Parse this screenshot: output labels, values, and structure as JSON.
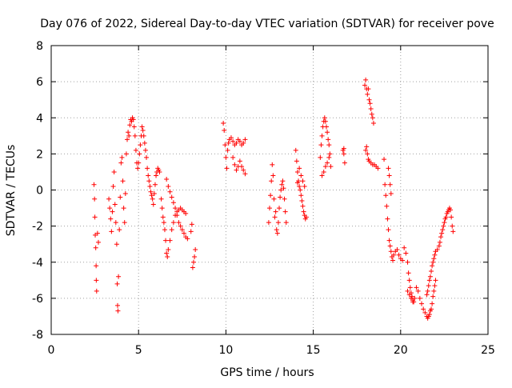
{
  "chart_data": {
    "type": "scatter",
    "title": "Day 076 of 2022, Sidereal Day-to-day VTEC variation (SDTVAR) for receiver pove",
    "xlabel": "GPS time / hours",
    "ylabel": "SDTVAR / TECUs",
    "xlim": [
      0,
      25
    ],
    "ylim": [
      -8,
      8
    ],
    "xticks": [
      0,
      5,
      10,
      15,
      20,
      25
    ],
    "yticks": [
      -8,
      -6,
      -4,
      -2,
      0,
      2,
      4,
      6,
      8
    ],
    "xtick_labels": [
      "0",
      "5",
      "10",
      "15",
      "20",
      "25"
    ],
    "ytick_labels": [
      "-8",
      "-6",
      "-4",
      "-2",
      "0",
      "2",
      "4",
      "6",
      "8"
    ],
    "grid": true,
    "marker": "+",
    "color": "#ff0000",
    "series": [
      {
        "name": "SDTVAR",
        "points": [
          [
            2.45,
            0.3
          ],
          [
            2.48,
            -0.5
          ],
          [
            2.5,
            -1.5
          ],
          [
            2.52,
            -2.5
          ],
          [
            2.55,
            -3.2
          ],
          [
            2.57,
            -4.2
          ],
          [
            2.58,
            -5.0
          ],
          [
            2.6,
            -5.6
          ],
          [
            2.65,
            -2.4
          ],
          [
            2.7,
            -2.9
          ],
          [
            3.3,
            -0.5
          ],
          [
            3.35,
            -1.0
          ],
          [
            3.4,
            -1.6
          ],
          [
            3.45,
            -2.3
          ],
          [
            3.5,
            -1.2
          ],
          [
            3.55,
            0.2
          ],
          [
            3.6,
            1.0
          ],
          [
            3.65,
            -0.8
          ],
          [
            3.7,
            -1.8
          ],
          [
            3.75,
            -3.0
          ],
          [
            3.78,
            -5.2
          ],
          [
            3.8,
            -6.4
          ],
          [
            3.82,
            -6.7
          ],
          [
            3.85,
            -4.8
          ],
          [
            3.9,
            -2.2
          ],
          [
            3.95,
            -0.4
          ],
          [
            4.0,
            1.5
          ],
          [
            4.05,
            1.8
          ],
          [
            4.1,
            0.5
          ],
          [
            4.15,
            -1.0
          ],
          [
            4.2,
            -1.8
          ],
          [
            4.25,
            -0.2
          ],
          [
            4.3,
            2.0
          ],
          [
            4.35,
            2.8
          ],
          [
            4.4,
            3.2
          ],
          [
            4.45,
            3.0
          ],
          [
            4.5,
            3.6
          ],
          [
            4.55,
            3.9
          ],
          [
            4.6,
            3.8
          ],
          [
            4.65,
            4.0
          ],
          [
            4.7,
            3.9
          ],
          [
            4.75,
            3.5
          ],
          [
            4.8,
            3.0
          ],
          [
            4.85,
            2.2
          ],
          [
            4.9,
            1.5
          ],
          [
            4.95,
            1.2
          ],
          [
            5.0,
            1.5
          ],
          [
            5.05,
            2.0
          ],
          [
            5.1,
            2.5
          ],
          [
            5.15,
            3.0
          ],
          [
            5.2,
            3.5
          ],
          [
            5.25,
            3.3
          ],
          [
            5.3,
            3.0
          ],
          [
            5.35,
            2.6
          ],
          [
            5.4,
            2.2
          ],
          [
            5.45,
            1.8
          ],
          [
            5.5,
            1.2
          ],
          [
            5.55,
            0.8
          ],
          [
            5.6,
            0.5
          ],
          [
            5.65,
            0.2
          ],
          [
            5.7,
            -0.1
          ],
          [
            5.75,
            -0.3
          ],
          [
            5.8,
            -0.5
          ],
          [
            5.85,
            -0.8
          ],
          [
            5.9,
            -0.2
          ],
          [
            5.95,
            0.3
          ],
          [
            6.0,
            0.8
          ],
          [
            6.05,
            1.0
          ],
          [
            6.1,
            1.2
          ],
          [
            6.15,
            1.1
          ],
          [
            6.2,
            1.0
          ],
          [
            6.3,
            -0.5
          ],
          [
            6.35,
            -1.0
          ],
          [
            6.4,
            -1.5
          ],
          [
            6.45,
            -1.8
          ],
          [
            6.5,
            -2.2
          ],
          [
            6.55,
            -2.8
          ],
          [
            6.6,
            -3.5
          ],
          [
            6.65,
            -3.7
          ],
          [
            6.7,
            -3.3
          ],
          [
            6.8,
            -2.8
          ],
          [
            6.9,
            -2.2
          ],
          [
            7.0,
            -1.8
          ],
          [
            7.1,
            -1.4
          ],
          [
            7.2,
            -1.2
          ],
          [
            7.3,
            -1.1
          ],
          [
            7.4,
            -1.0
          ],
          [
            7.5,
            -1.1
          ],
          [
            7.6,
            -1.2
          ],
          [
            7.7,
            -1.3
          ],
          [
            6.6,
            0.6
          ],
          [
            6.7,
            0.2
          ],
          [
            6.8,
            -0.1
          ],
          [
            6.9,
            -0.4
          ],
          [
            7.0,
            -0.7
          ],
          [
            7.1,
            -1.0
          ],
          [
            7.2,
            -1.4
          ],
          [
            7.3,
            -1.8
          ],
          [
            7.4,
            -2.0
          ],
          [
            7.5,
            -2.2
          ],
          [
            7.6,
            -2.4
          ],
          [
            7.7,
            -2.6
          ],
          [
            7.8,
            -2.7
          ],
          [
            8.0,
            -2.3
          ],
          [
            8.05,
            -1.9
          ],
          [
            8.1,
            -4.3
          ],
          [
            8.15,
            -4.0
          ],
          [
            8.2,
            -3.7
          ],
          [
            8.25,
            -3.3
          ],
          [
            9.85,
            3.7
          ],
          [
            9.9,
            3.3
          ],
          [
            9.95,
            2.5
          ],
          [
            10.0,
            1.8
          ],
          [
            10.05,
            1.2
          ],
          [
            10.1,
            2.2
          ],
          [
            10.15,
            2.6
          ],
          [
            10.2,
            2.8
          ],
          [
            10.3,
            2.9
          ],
          [
            10.4,
            2.7
          ],
          [
            10.5,
            2.5
          ],
          [
            10.6,
            2.6
          ],
          [
            10.7,
            2.8
          ],
          [
            10.8,
            2.7
          ],
          [
            10.9,
            2.5
          ],
          [
            11.0,
            2.6
          ],
          [
            11.1,
            2.8
          ],
          [
            10.4,
            1.8
          ],
          [
            10.5,
            1.4
          ],
          [
            10.6,
            1.1
          ],
          [
            10.7,
            1.3
          ],
          [
            10.8,
            1.6
          ],
          [
            10.9,
            1.3
          ],
          [
            11.0,
            1.1
          ],
          [
            11.1,
            0.9
          ],
          [
            12.45,
            -1.8
          ],
          [
            12.5,
            -1.0
          ],
          [
            12.55,
            -0.3
          ],
          [
            12.6,
            0.5
          ],
          [
            12.65,
            1.4
          ],
          [
            12.7,
            0.8
          ],
          [
            12.75,
            -0.5
          ],
          [
            12.8,
            -1.5
          ],
          [
            12.85,
            -1.2
          ],
          [
            12.9,
            -2.2
          ],
          [
            12.95,
            -2.4
          ],
          [
            13.0,
            -1.8
          ],
          [
            13.05,
            -1.0
          ],
          [
            13.1,
            -0.4
          ],
          [
            13.15,
            0.0
          ],
          [
            13.2,
            0.3
          ],
          [
            13.25,
            0.5
          ],
          [
            13.3,
            0.1
          ],
          [
            13.35,
            -0.5
          ],
          [
            13.4,
            -1.2
          ],
          [
            13.45,
            -1.8
          ],
          [
            14.0,
            2.2
          ],
          [
            14.05,
            1.6
          ],
          [
            14.1,
            1.0
          ],
          [
            14.15,
            0.5
          ],
          [
            14.2,
            0.2
          ],
          [
            14.25,
            0.0
          ],
          [
            14.3,
            -0.3
          ],
          [
            14.35,
            -0.6
          ],
          [
            14.4,
            -0.9
          ],
          [
            14.45,
            -1.2
          ],
          [
            14.5,
            -1.4
          ],
          [
            14.55,
            -1.6
          ],
          [
            14.6,
            -1.5
          ],
          [
            14.2,
            1.2
          ],
          [
            14.3,
            0.8
          ],
          [
            14.4,
            0.5
          ],
          [
            14.5,
            0.2
          ],
          [
            14.1,
            0.4
          ],
          [
            15.4,
            1.8
          ],
          [
            15.45,
            2.5
          ],
          [
            15.5,
            3.0
          ],
          [
            15.55,
            3.5
          ],
          [
            15.6,
            3.8
          ],
          [
            15.65,
            4.0
          ],
          [
            15.7,
            3.8
          ],
          [
            15.75,
            3.5
          ],
          [
            15.8,
            3.2
          ],
          [
            15.85,
            2.8
          ],
          [
            15.9,
            2.5
          ],
          [
            15.95,
            2.0
          ],
          [
            15.6,
            1.0
          ],
          [
            15.7,
            1.3
          ],
          [
            15.8,
            1.5
          ],
          [
            15.9,
            1.8
          ],
          [
            16.0,
            1.3
          ],
          [
            15.5,
            0.8
          ],
          [
            16.7,
            2.2
          ],
          [
            16.75,
            2.0
          ],
          [
            16.8,
            1.5
          ],
          [
            16.75,
            2.3
          ],
          [
            17.95,
            5.8
          ],
          [
            18.0,
            6.1
          ],
          [
            18.05,
            5.6
          ],
          [
            18.1,
            5.3
          ],
          [
            18.15,
            5.6
          ],
          [
            18.2,
            5.0
          ],
          [
            18.25,
            4.8
          ],
          [
            18.3,
            4.5
          ],
          [
            18.35,
            4.2
          ],
          [
            18.4,
            4.0
          ],
          [
            18.45,
            3.7
          ],
          [
            18.0,
            2.2
          ],
          [
            18.05,
            2.4
          ],
          [
            18.1,
            2.0
          ],
          [
            18.15,
            1.7
          ],
          [
            18.2,
            1.6
          ],
          [
            18.3,
            1.5
          ],
          [
            18.4,
            1.4
          ],
          [
            18.5,
            1.4
          ],
          [
            18.6,
            1.3
          ],
          [
            18.7,
            1.2
          ],
          [
            19.05,
            1.7
          ],
          [
            19.1,
            0.3
          ],
          [
            19.15,
            -0.3
          ],
          [
            19.2,
            -0.9
          ],
          [
            19.25,
            -1.6
          ],
          [
            19.3,
            -2.2
          ],
          [
            19.35,
            -2.8
          ],
          [
            19.4,
            -3.1
          ],
          [
            19.45,
            -3.4
          ],
          [
            19.5,
            -3.7
          ],
          [
            19.55,
            -3.9
          ],
          [
            19.3,
            1.2
          ],
          [
            19.35,
            0.8
          ],
          [
            19.4,
            0.3
          ],
          [
            19.45,
            -0.2
          ],
          [
            19.6,
            -3.6
          ],
          [
            19.7,
            -3.4
          ],
          [
            19.8,
            -3.3
          ],
          [
            19.9,
            -3.6
          ],
          [
            20.0,
            -3.8
          ],
          [
            20.1,
            -3.9
          ],
          [
            20.2,
            -3.2
          ],
          [
            20.3,
            -3.5
          ],
          [
            20.4,
            -4.0
          ],
          [
            20.45,
            -4.6
          ],
          [
            20.5,
            -5.0
          ],
          [
            20.55,
            -5.4
          ],
          [
            20.6,
            -5.7
          ],
          [
            20.65,
            -5.9
          ],
          [
            20.7,
            -6.1
          ],
          [
            20.75,
            -6.2
          ],
          [
            20.8,
            -6.0
          ],
          [
            20.4,
            -5.6
          ],
          [
            20.5,
            -5.8
          ],
          [
            20.6,
            -6.0
          ],
          [
            20.7,
            -6.2
          ],
          [
            20.9,
            -5.4
          ],
          [
            21.0,
            -5.6
          ],
          [
            21.1,
            -6.0
          ],
          [
            21.2,
            -6.3
          ],
          [
            21.3,
            -6.6
          ],
          [
            21.4,
            -6.8
          ],
          [
            21.5,
            -7.0
          ],
          [
            21.55,
            -7.1
          ],
          [
            21.6,
            -7.0
          ],
          [
            21.65,
            -6.9
          ],
          [
            21.7,
            -6.7
          ],
          [
            21.75,
            -6.6
          ],
          [
            21.8,
            -6.3
          ],
          [
            21.85,
            -5.9
          ],
          [
            21.9,
            -5.6
          ],
          [
            21.95,
            -5.3
          ],
          [
            22.0,
            -5.0
          ],
          [
            21.5,
            -5.8
          ],
          [
            21.55,
            -5.6
          ],
          [
            21.6,
            -5.3
          ],
          [
            21.65,
            -5.0
          ],
          [
            21.7,
            -4.8
          ],
          [
            21.75,
            -4.5
          ],
          [
            21.8,
            -4.2
          ],
          [
            21.85,
            -4.0
          ],
          [
            21.9,
            -3.8
          ],
          [
            21.95,
            -3.6
          ],
          [
            22.0,
            -3.4
          ],
          [
            22.1,
            -3.3
          ],
          [
            22.2,
            -3.1
          ],
          [
            22.25,
            -2.9
          ],
          [
            22.3,
            -2.6
          ],
          [
            22.35,
            -2.4
          ],
          [
            22.4,
            -2.2
          ],
          [
            22.45,
            -2.0
          ],
          [
            22.5,
            -1.8
          ],
          [
            22.55,
            -1.6
          ],
          [
            22.6,
            -1.5
          ],
          [
            22.65,
            -1.3
          ],
          [
            22.7,
            -1.2
          ],
          [
            22.75,
            -1.1
          ],
          [
            22.8,
            -1.0
          ],
          [
            22.85,
            -1.1
          ],
          [
            22.9,
            -1.5
          ],
          [
            22.95,
            -2.0
          ],
          [
            23.0,
            -2.3
          ]
        ]
      }
    ]
  }
}
